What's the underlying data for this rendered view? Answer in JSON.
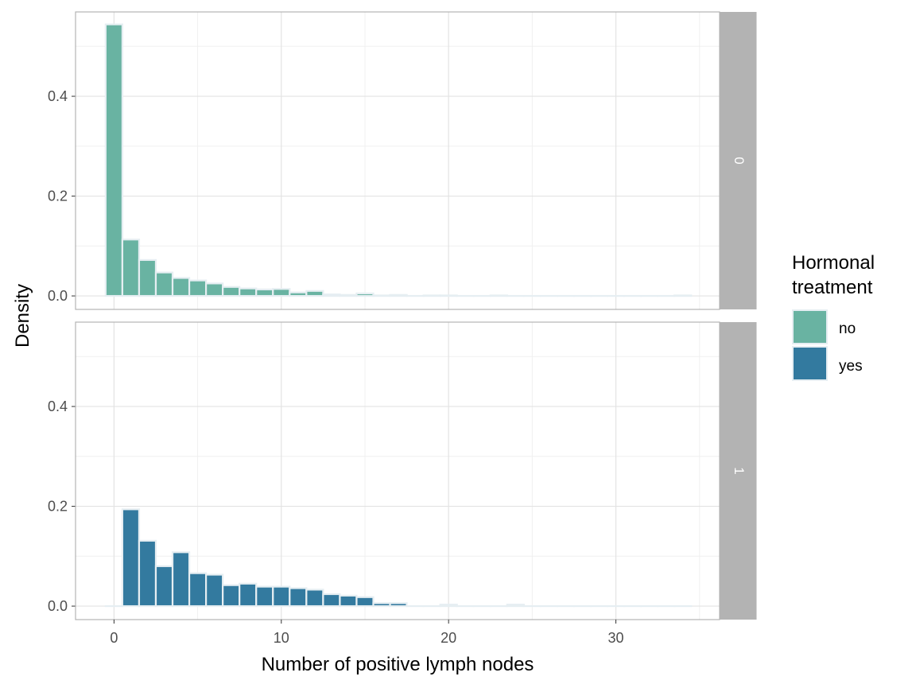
{
  "chart_data": {
    "type": "bar",
    "subtype": "faceted-histogram",
    "xlabel": "Number of positive lymph nodes",
    "ylabel": "Density",
    "xlim": [
      -2.3,
      36.2
    ],
    "ylim": [
      -0.027,
      0.569
    ],
    "x_ticks": [
      0,
      10,
      20,
      30
    ],
    "y_ticks": [
      0.0,
      0.2,
      0.4
    ],
    "y_tick_labels": [
      "0.0",
      "0.2",
      "0.4"
    ],
    "bin_width": 1,
    "bin_centers": [
      0,
      1,
      2,
      3,
      4,
      5,
      6,
      7,
      8,
      9,
      10,
      11,
      12,
      13,
      14,
      15,
      16,
      17,
      18,
      19,
      20,
      21,
      22,
      23,
      24,
      25,
      26,
      27,
      28,
      29,
      30,
      31,
      32,
      33,
      34
    ],
    "grid": true,
    "legend": {
      "title_lines": [
        "Hormonal",
        "treatment"
      ],
      "position": "right",
      "entries": [
        {
          "label": "no",
          "color": "#69b3a2"
        },
        {
          "label": "yes",
          "color": "#337a9f"
        }
      ]
    },
    "panels": [
      {
        "strip": "0",
        "series_name": "no",
        "color": "#69b3a2",
        "values": [
          0.544,
          0.113,
          0.072,
          0.047,
          0.036,
          0.031,
          0.025,
          0.018,
          0.015,
          0.013,
          0.014,
          0.007,
          0.01,
          0.003,
          0.002,
          0.005,
          0.001,
          0.002,
          0.0,
          0.001,
          0.001,
          0.0,
          0.0,
          0.001,
          0.0,
          0.0,
          0.0,
          0.0,
          0.0,
          0.0,
          0.0,
          0.0,
          0.0,
          0.0,
          0.001
        ]
      },
      {
        "strip": "1",
        "series_name": "yes",
        "color": "#337a9f",
        "values": [
          0.0,
          0.194,
          0.131,
          0.08,
          0.108,
          0.066,
          0.063,
          0.042,
          0.045,
          0.039,
          0.039,
          0.036,
          0.033,
          0.024,
          0.021,
          0.018,
          0.006,
          0.006,
          0.0,
          0.0,
          0.003,
          0.0,
          0.0,
          0.0,
          0.003,
          0.0,
          0.0,
          0.0,
          0.0,
          0.0,
          0.0,
          0.0,
          0.0,
          0.0,
          0.0
        ]
      }
    ]
  }
}
